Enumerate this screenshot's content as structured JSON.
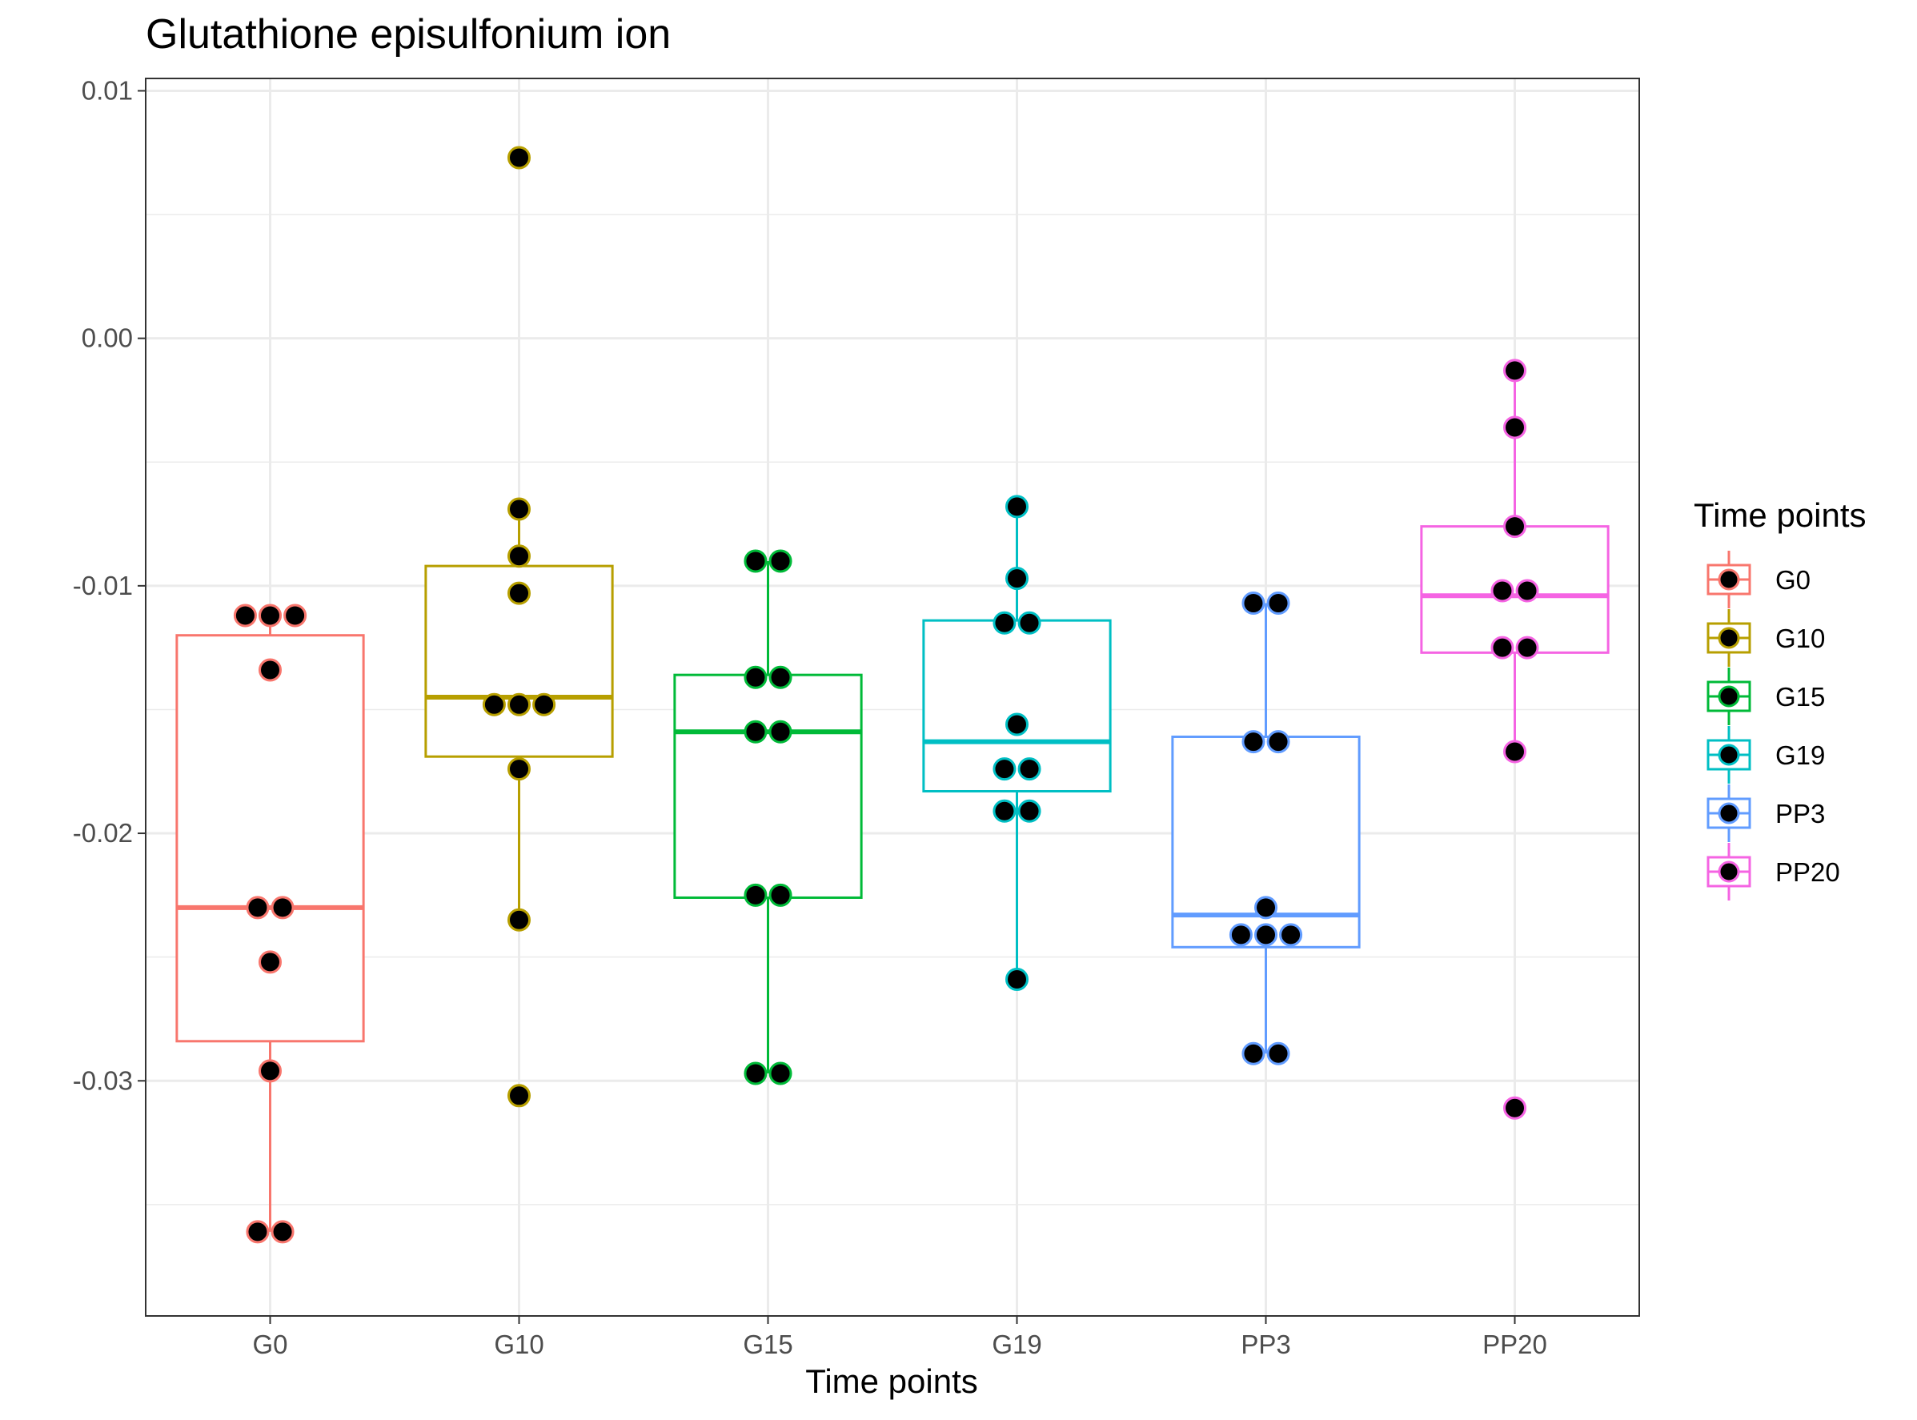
{
  "chart_data": {
    "type": "boxplot",
    "title": "Glutathione episulfonium ion",
    "xlabel": "Time points",
    "ylabel": "",
    "ylim": [
      -0.0395,
      0.0105
    ],
    "y_ticks": [
      0.01,
      0.0,
      -0.01,
      -0.02,
      -0.03
    ],
    "y_tick_labels": [
      "0.01",
      "0.00",
      "-0.01",
      "-0.02",
      "-0.03"
    ],
    "categories": [
      "G0",
      "G10",
      "G15",
      "G19",
      "PP3",
      "PP20"
    ],
    "grid": true,
    "legend": {
      "title": "Time points",
      "position": "right",
      "entries": [
        "G0",
        "G10",
        "G15",
        "G19",
        "PP3",
        "PP20"
      ]
    },
    "colors": {
      "G0": "#F8766D",
      "G10": "#B79F00",
      "G15": "#00BA38",
      "G19": "#00BFC4",
      "PP3": "#619CFF",
      "PP20": "#F564E3",
      "point_fill": "#000000",
      "grid": "#ebebeb",
      "panel_border": "#333333"
    },
    "series": [
      {
        "name": "G0",
        "box": {
          "whisker_low": -0.0361,
          "q1": -0.0284,
          "median": -0.023,
          "q3": -0.012,
          "whisker_high": -0.0112
        },
        "points": [
          {
            "x": -0.1,
            "y": -0.0112
          },
          {
            "x": 0.0,
            "y": -0.0112
          },
          {
            "x": 0.1,
            "y": -0.0112
          },
          {
            "x": 0.0,
            "y": -0.0134
          },
          {
            "x": -0.05,
            "y": -0.023
          },
          {
            "x": 0.05,
            "y": -0.023
          },
          {
            "x": 0.0,
            "y": -0.0252
          },
          {
            "x": 0.0,
            "y": -0.0296
          },
          {
            "x": -0.05,
            "y": -0.0361
          },
          {
            "x": 0.05,
            "y": -0.0361
          }
        ]
      },
      {
        "name": "G10",
        "box": {
          "whisker_low": -0.0235,
          "q1": -0.0169,
          "median": -0.0145,
          "q3": -0.0092,
          "whisker_high": -0.0069
        },
        "points": [
          {
            "x": 0.0,
            "y": 0.0073
          },
          {
            "x": 0.0,
            "y": -0.0069
          },
          {
            "x": 0.0,
            "y": -0.0088
          },
          {
            "x": 0.0,
            "y": -0.0103
          },
          {
            "x": -0.1,
            "y": -0.0148
          },
          {
            "x": 0.0,
            "y": -0.0148
          },
          {
            "x": 0.1,
            "y": -0.0148
          },
          {
            "x": 0.0,
            "y": -0.0174
          },
          {
            "x": 0.0,
            "y": -0.0235
          },
          {
            "x": 0.0,
            "y": -0.0306
          }
        ]
      },
      {
        "name": "G15",
        "box": {
          "whisker_low": -0.0297,
          "q1": -0.0226,
          "median": -0.0159,
          "q3": -0.0136,
          "whisker_high": -0.009
        },
        "points": [
          {
            "x": -0.05,
            "y": -0.009
          },
          {
            "x": 0.05,
            "y": -0.009
          },
          {
            "x": -0.05,
            "y": -0.0137
          },
          {
            "x": 0.05,
            "y": -0.0137
          },
          {
            "x": -0.05,
            "y": -0.0159
          },
          {
            "x": 0.05,
            "y": -0.0159
          },
          {
            "x": -0.05,
            "y": -0.0225
          },
          {
            "x": 0.05,
            "y": -0.0225
          },
          {
            "x": -0.05,
            "y": -0.0297
          },
          {
            "x": 0.05,
            "y": -0.0297
          }
        ]
      },
      {
        "name": "G19",
        "box": {
          "whisker_low": -0.0259,
          "q1": -0.0183,
          "median": -0.0163,
          "q3": -0.0114,
          "whisker_high": -0.0068
        },
        "points": [
          {
            "x": 0.0,
            "y": -0.0068
          },
          {
            "x": 0.0,
            "y": -0.0097
          },
          {
            "x": -0.05,
            "y": -0.0115
          },
          {
            "x": 0.05,
            "y": -0.0115
          },
          {
            "x": 0.0,
            "y": -0.0156
          },
          {
            "x": -0.05,
            "y": -0.0174
          },
          {
            "x": 0.05,
            "y": -0.0174
          },
          {
            "x": -0.05,
            "y": -0.0191
          },
          {
            "x": 0.05,
            "y": -0.0191
          },
          {
            "x": 0.0,
            "y": -0.0259
          }
        ]
      },
      {
        "name": "PP3",
        "box": {
          "whisker_low": -0.0289,
          "q1": -0.0246,
          "median": -0.0233,
          "q3": -0.0161,
          "whisker_high": -0.0107
        },
        "points": [
          {
            "x": -0.05,
            "y": -0.0107
          },
          {
            "x": 0.05,
            "y": -0.0107
          },
          {
            "x": -0.05,
            "y": -0.0163
          },
          {
            "x": 0.05,
            "y": -0.0163
          },
          {
            "x": 0.0,
            "y": -0.023
          },
          {
            "x": -0.1,
            "y": -0.0241
          },
          {
            "x": 0.0,
            "y": -0.0241
          },
          {
            "x": 0.1,
            "y": -0.0241
          },
          {
            "x": -0.05,
            "y": -0.0289
          },
          {
            "x": 0.05,
            "y": -0.0289
          }
        ]
      },
      {
        "name": "PP20",
        "box": {
          "whisker_low": -0.0167,
          "q1": -0.0127,
          "median": -0.0104,
          "q3": -0.0076,
          "whisker_high": -0.0013
        },
        "points": [
          {
            "x": 0.0,
            "y": -0.0013
          },
          {
            "x": 0.0,
            "y": -0.0036
          },
          {
            "x": 0.0,
            "y": -0.0076
          },
          {
            "x": -0.05,
            "y": -0.0102
          },
          {
            "x": 0.05,
            "y": -0.0102
          },
          {
            "x": -0.05,
            "y": -0.0125
          },
          {
            "x": 0.05,
            "y": -0.0125
          },
          {
            "x": 0.0,
            "y": -0.0167
          },
          {
            "x": 0.0,
            "y": -0.0311
          }
        ]
      }
    ]
  }
}
